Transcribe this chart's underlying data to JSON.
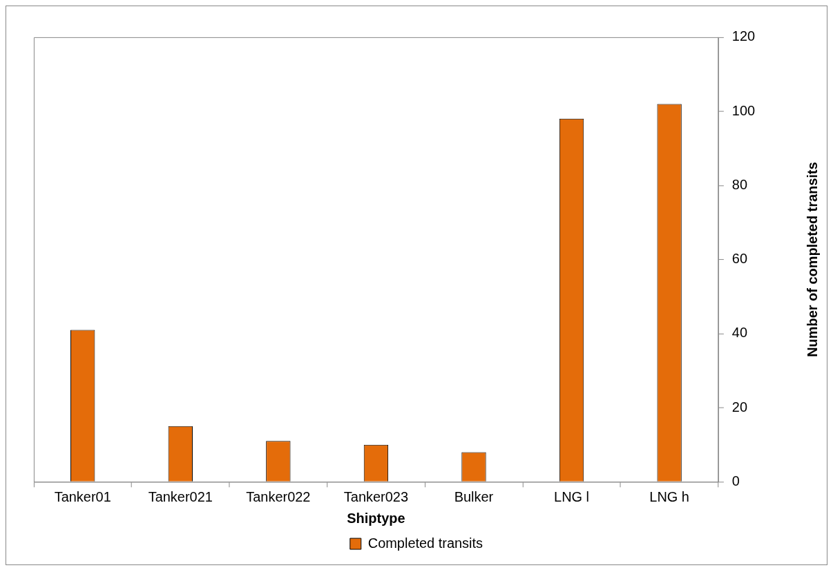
{
  "chart_data": {
    "type": "bar",
    "xlabel": "Shiptype",
    "ylabel": "Number of completed transits",
    "categories": [
      "Tanker01",
      "Tanker021",
      "Tanker022",
      "Tanker023",
      "Bulker",
      "LNG l",
      "LNG h"
    ],
    "series": [
      {
        "name": "Completed transits",
        "color": "#e46c0a",
        "values": [
          41,
          15,
          11,
          10,
          8,
          98,
          102
        ]
      }
    ],
    "ylim": [
      0,
      120
    ],
    "yticks": [
      0,
      20,
      40,
      60,
      80,
      100,
      120
    ],
    "legend": "bottom"
  }
}
